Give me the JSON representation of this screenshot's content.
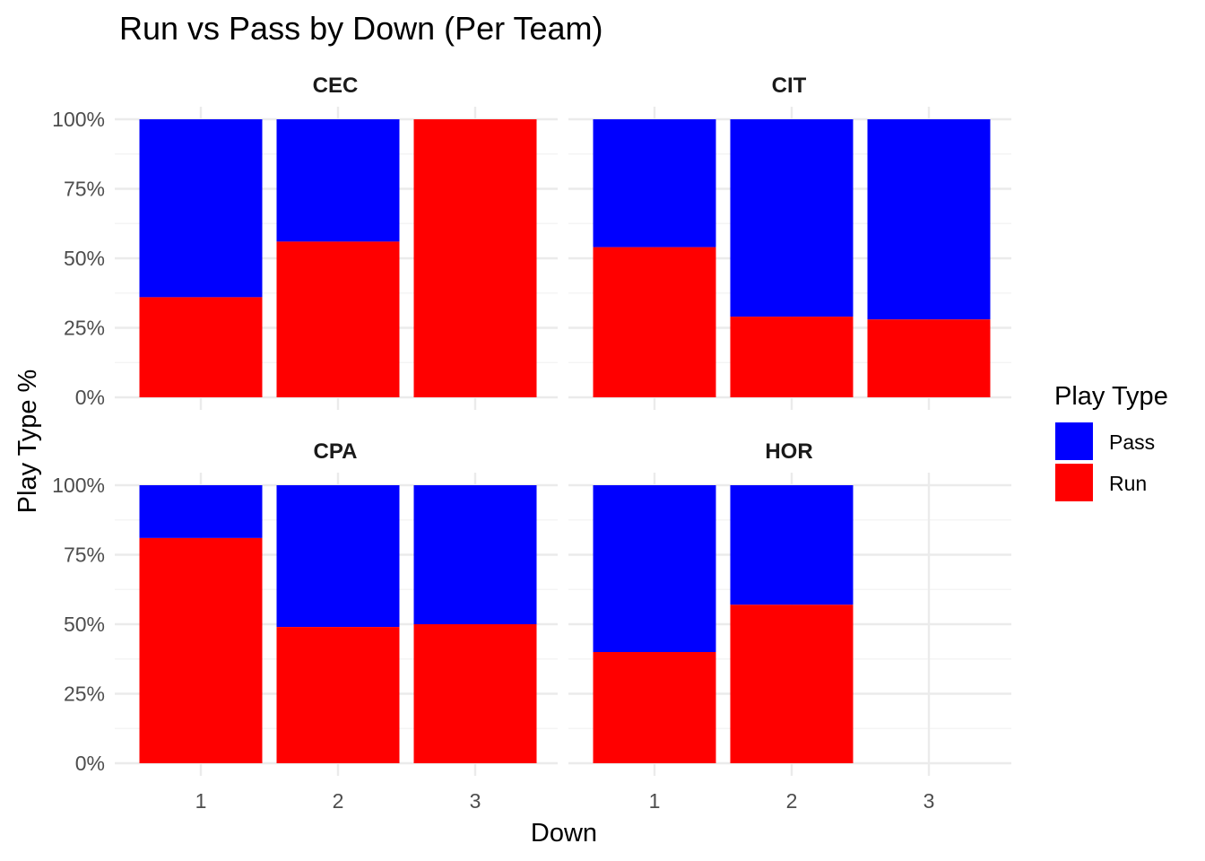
{
  "chart_data": {
    "type": "bar",
    "stacked": true,
    "title": "Run vs Pass by Down (Per Team)",
    "xlabel": "Down",
    "ylabel": "Play Type %",
    "categories": [
      "1",
      "2",
      "3"
    ],
    "y_ticks": [
      "0%",
      "25%",
      "50%",
      "75%",
      "100%"
    ],
    "ylim": [
      0,
      1
    ],
    "grid": true,
    "legend": {
      "title": "Play Type",
      "position": "right",
      "entries": [
        {
          "name": "Pass",
          "color": "#0000FF"
        },
        {
          "name": "Run",
          "color": "#FF0000"
        }
      ]
    },
    "facets": [
      {
        "team": "CEC",
        "run": [
          0.36,
          0.56,
          1.0
        ],
        "pass": [
          0.64,
          0.44,
          0.0
        ]
      },
      {
        "team": "CIT",
        "run": [
          0.54,
          0.29,
          0.28
        ],
        "pass": [
          0.46,
          0.71,
          0.72
        ]
      },
      {
        "team": "CPA",
        "run": [
          0.81,
          0.49,
          0.5
        ],
        "pass": [
          0.19,
          0.51,
          0.5
        ]
      },
      {
        "team": "HOR",
        "run": [
          0.4,
          0.57,
          null
        ],
        "pass": [
          0.6,
          0.43,
          null
        ]
      }
    ]
  }
}
